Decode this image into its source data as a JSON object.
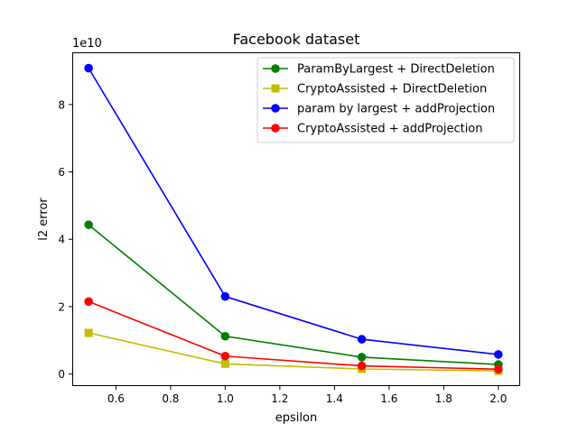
{
  "chart_data": {
    "type": "line",
    "title": "Facebook dataset",
    "xlabel": "epsilon",
    "ylabel": "l2 error",
    "y_scale_label": "1e10",
    "xlim": [
      0.44,
      2.08
    ],
    "ylim": [
      -0.36,
      9.55
    ],
    "x_ticks": [
      0.6,
      0.8,
      1.0,
      1.2,
      1.4,
      1.6,
      1.8,
      2.0
    ],
    "x_tick_labels": [
      "0.6",
      "0.8",
      "1.0",
      "1.2",
      "1.4",
      "1.6",
      "1.8",
      "2.0"
    ],
    "y_ticks": [
      0,
      2,
      4,
      6,
      8
    ],
    "y_tick_labels": [
      "0",
      "2",
      "4",
      "6",
      "8"
    ],
    "legend_position": "top-right",
    "x": [
      0.5,
      1.0,
      1.5,
      2.0
    ],
    "series": [
      {
        "name": "ParamByLargest + DirectDeletion",
        "color": "#008000",
        "marker": "circle",
        "values": [
          4.43,
          1.12,
          0.5,
          0.28
        ]
      },
      {
        "name": "CryptoAssisted + DirectDeletion",
        "color": "#bfbf00",
        "marker": "square",
        "values": [
          1.22,
          0.3,
          0.15,
          0.09
        ]
      },
      {
        "name": "param by largest + addProjection",
        "color": "#0000ff",
        "marker": "circle",
        "values": [
          9.08,
          2.3,
          1.03,
          0.58
        ]
      },
      {
        "name": "CryptoAssisted + addProjection",
        "color": "#ff0000",
        "marker": "circle",
        "values": [
          2.15,
          0.53,
          0.24,
          0.14
        ]
      }
    ]
  }
}
